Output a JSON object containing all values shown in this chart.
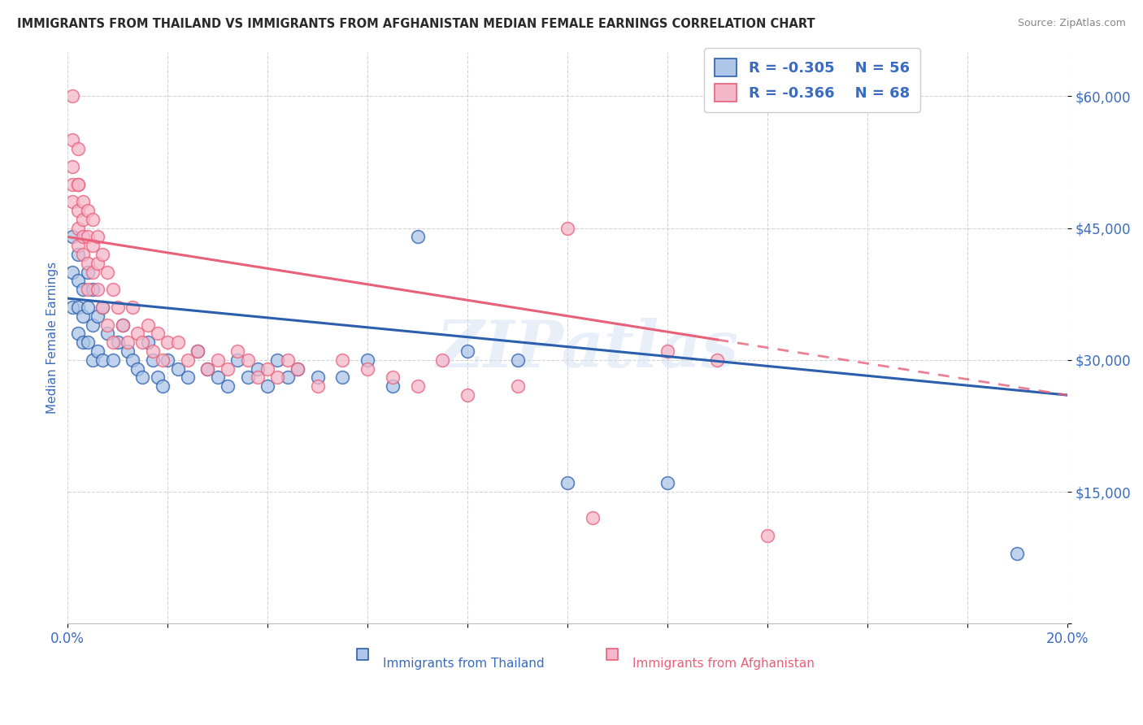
{
  "title": "IMMIGRANTS FROM THAILAND VS IMMIGRANTS FROM AFGHANISTAN MEDIAN FEMALE EARNINGS CORRELATION CHART",
  "source": "Source: ZipAtlas.com",
  "ylabel": "Median Female Earnings",
  "xmin": 0.0,
  "xmax": 0.2,
  "ymin": 0,
  "ymax": 65000,
  "yticks": [
    0,
    15000,
    30000,
    45000,
    60000
  ],
  "ytick_labels": [
    "",
    "$15,000",
    "$30,000",
    "$45,000",
    "$60,000"
  ],
  "legend_r1": "-0.305",
  "legend_n1": "56",
  "legend_r2": "-0.366",
  "legend_n2": "68",
  "color_thailand": "#aec6e8",
  "color_afghanistan": "#f5b8ca",
  "color_thailand_line": "#2b5fad",
  "color_afghanistan_line": "#e8607a",
  "color_axis_labels": "#3a6bbf",
  "color_title": "#2a2a2a",
  "color_source": "#888888",
  "watermark": "ZIPatlas",
  "trend_blue_x0": 0.0,
  "trend_blue_y0": 37000,
  "trend_blue_x1": 0.2,
  "trend_blue_y1": 26000,
  "trend_pink_x0": 0.0,
  "trend_pink_y0": 44000,
  "trend_pink_x1": 0.2,
  "trend_pink_y1": 26000,
  "trend_pink_solid_end": 0.13,
  "thailand_x": [
    0.001,
    0.001,
    0.001,
    0.002,
    0.002,
    0.002,
    0.002,
    0.003,
    0.003,
    0.003,
    0.004,
    0.004,
    0.004,
    0.005,
    0.005,
    0.005,
    0.006,
    0.006,
    0.007,
    0.007,
    0.008,
    0.009,
    0.01,
    0.011,
    0.012,
    0.013,
    0.014,
    0.015,
    0.016,
    0.017,
    0.018,
    0.019,
    0.02,
    0.022,
    0.024,
    0.026,
    0.028,
    0.03,
    0.032,
    0.034,
    0.036,
    0.038,
    0.04,
    0.042,
    0.044,
    0.046,
    0.05,
    0.055,
    0.06,
    0.065,
    0.07,
    0.08,
    0.09,
    0.1,
    0.12,
    0.19
  ],
  "thailand_y": [
    44000,
    40000,
    36000,
    42000,
    39000,
    36000,
    33000,
    38000,
    35000,
    32000,
    40000,
    36000,
    32000,
    38000,
    34000,
    30000,
    35000,
    31000,
    36000,
    30000,
    33000,
    30000,
    32000,
    34000,
    31000,
    30000,
    29000,
    28000,
    32000,
    30000,
    28000,
    27000,
    30000,
    29000,
    28000,
    31000,
    29000,
    28000,
    27000,
    30000,
    28000,
    29000,
    27000,
    30000,
    28000,
    29000,
    28000,
    28000,
    30000,
    27000,
    44000,
    31000,
    30000,
    16000,
    16000,
    8000
  ],
  "afghanistan_x": [
    0.001,
    0.001,
    0.001,
    0.001,
    0.001,
    0.002,
    0.002,
    0.002,
    0.002,
    0.002,
    0.002,
    0.003,
    0.003,
    0.003,
    0.003,
    0.004,
    0.004,
    0.004,
    0.004,
    0.005,
    0.005,
    0.005,
    0.006,
    0.006,
    0.006,
    0.007,
    0.007,
    0.008,
    0.008,
    0.009,
    0.009,
    0.01,
    0.011,
    0.012,
    0.013,
    0.014,
    0.015,
    0.016,
    0.017,
    0.018,
    0.019,
    0.02,
    0.022,
    0.024,
    0.026,
    0.028,
    0.03,
    0.032,
    0.034,
    0.036,
    0.038,
    0.04,
    0.042,
    0.044,
    0.046,
    0.05,
    0.055,
    0.06,
    0.065,
    0.07,
    0.075,
    0.08,
    0.09,
    0.1,
    0.105,
    0.12,
    0.13,
    0.14
  ],
  "afghanistan_y": [
    60000,
    55000,
    52000,
    50000,
    48000,
    54000,
    50000,
    47000,
    45000,
    50000,
    43000,
    48000,
    46000,
    44000,
    42000,
    47000,
    44000,
    41000,
    38000,
    46000,
    43000,
    40000,
    44000,
    41000,
    38000,
    42000,
    36000,
    40000,
    34000,
    38000,
    32000,
    36000,
    34000,
    32000,
    36000,
    33000,
    32000,
    34000,
    31000,
    33000,
    30000,
    32000,
    32000,
    30000,
    31000,
    29000,
    30000,
    29000,
    31000,
    30000,
    28000,
    29000,
    28000,
    30000,
    29000,
    27000,
    30000,
    29000,
    28000,
    27000,
    30000,
    26000,
    27000,
    45000,
    12000,
    31000,
    30000,
    10000
  ]
}
